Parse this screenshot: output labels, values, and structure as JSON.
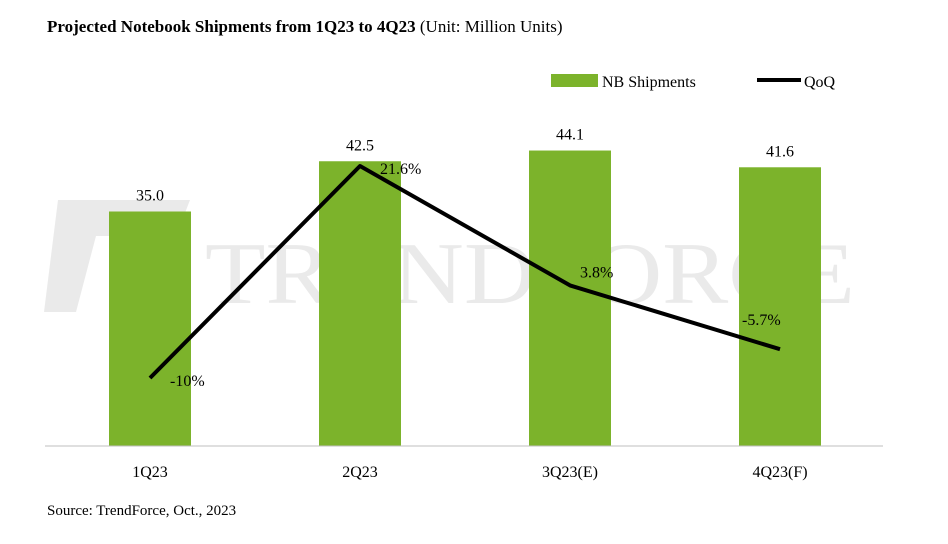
{
  "title": {
    "bold": "Projected Notebook Shipments from 1Q23 to 4Q23",
    "unit": " (Unit: Million Units)"
  },
  "source": "Source: TrendForce, Oct., 2023",
  "watermark": "TRENDFORCE",
  "colors": {
    "bar": "#7cb32b",
    "line": "#000000"
  },
  "chart_data": {
    "type": "bar+line",
    "title": "Projected Notebook Shipments from 1Q23 to 4Q23 (Unit: Million Units)",
    "categories": [
      "1Q23",
      "2Q23",
      "3Q23(E)",
      "4Q23(F)"
    ],
    "series": [
      {
        "name": "NB Shipments",
        "type": "bar",
        "values": [
          35.0,
          42.5,
          44.1,
          41.6
        ],
        "labels": [
          "35.0",
          "42.5",
          "44.1",
          "41.6"
        ]
      },
      {
        "name": "QoQ",
        "type": "line",
        "values": [
          -10,
          21.6,
          3.8,
          -5.7
        ],
        "labels": [
          "-10%",
          "21.6%",
          "3.8%",
          "-5.7%"
        ]
      }
    ],
    "legend": {
      "position": "top-right",
      "entries": [
        "NB Shipments",
        "QoQ"
      ]
    },
    "grid": false
  }
}
